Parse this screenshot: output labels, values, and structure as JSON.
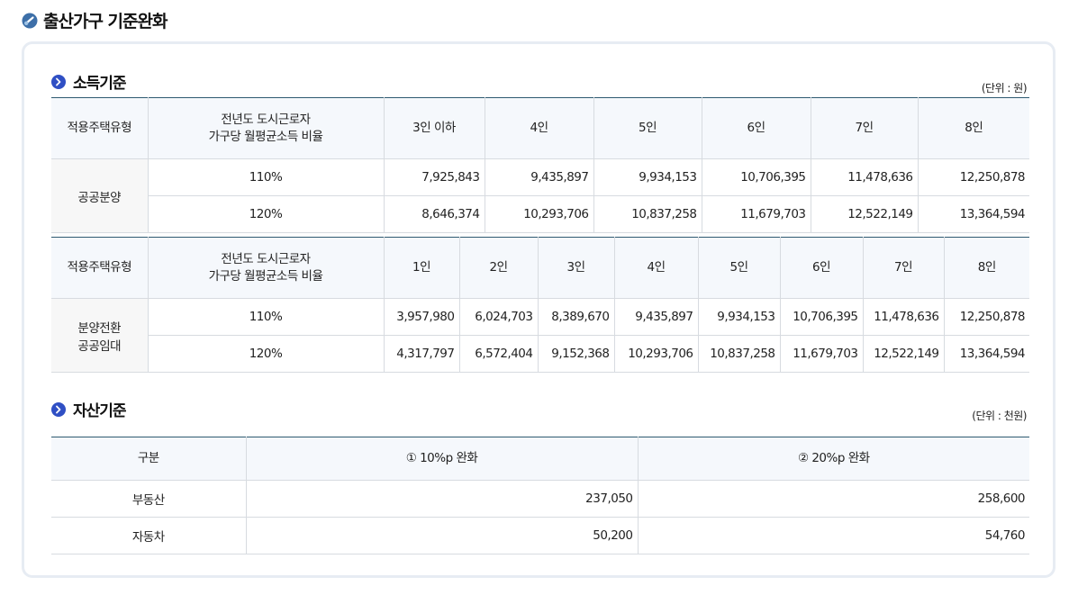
{
  "page_title": "출산가구 기준완화",
  "income": {
    "title": "소득기준",
    "unit": "(단위 : 원)",
    "table1": {
      "headers": [
        "적용주택유형",
        "전년도 도시근로자",
        "가구당 월평균소득 비율",
        "3인 이하",
        "4인",
        "5인",
        "6인",
        "7인",
        "8인"
      ],
      "type": "공공분양",
      "rows": [
        {
          "ratio": "110%",
          "values": [
            "7,925,843",
            "9,435,897",
            "9,934,153",
            "10,706,395",
            "11,478,636",
            "12,250,878"
          ]
        },
        {
          "ratio": "120%",
          "values": [
            "8,646,374",
            "10,293,706",
            "10,837,258",
            "11,679,703",
            "12,522,149",
            "13,364,594"
          ]
        }
      ]
    },
    "table2": {
      "headers": [
        "적용주택유형",
        "전년도 도시근로자",
        "가구당 월평균소득 비율",
        "1인",
        "2인",
        "3인",
        "4인",
        "5인",
        "6인",
        "7인",
        "8인"
      ],
      "type_line1": "분양전환",
      "type_line2": "공공임대",
      "rows": [
        {
          "ratio": "110%",
          "values": [
            "3,957,980",
            "6,024,703",
            "8,389,670",
            "9,435,897",
            "9,934,153",
            "10,706,395",
            "11,478,636",
            "12,250,878"
          ]
        },
        {
          "ratio": "120%",
          "values": [
            "4,317,797",
            "6,572,404",
            "9,152,368",
            "10,293,706",
            "10,837,258",
            "11,679,703",
            "12,522,149",
            "13,364,594"
          ]
        }
      ]
    }
  },
  "asset": {
    "title": "자산기준",
    "unit": "(단위 : 천원)",
    "headers": [
      "구분",
      "① 10%p 완화",
      "② 20%p 완화"
    ],
    "rows": [
      {
        "label": "부동산",
        "values": [
          "237,050",
          "258,600"
        ]
      },
      {
        "label": "자동차",
        "values": [
          "50,200",
          "54,760"
        ]
      }
    ]
  },
  "icons": {
    "title_icon": "link-circle-icon",
    "section_icon": "chevron-right-circle-icon",
    "accent": "#2f4fc4"
  }
}
